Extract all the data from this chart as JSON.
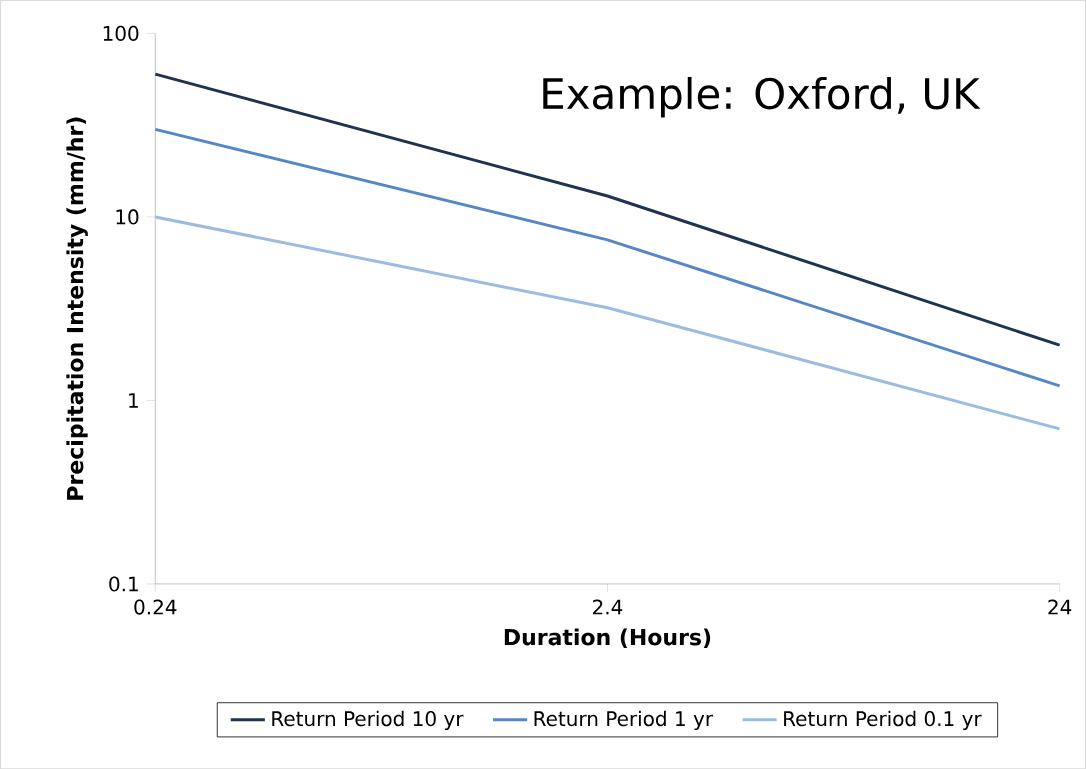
{
  "chart_data": {
    "type": "line",
    "xlabel": "Duration (Hours)",
    "ylabel": "Precipitation Intensity (mm/hr)",
    "log": "xy",
    "x": [
      0.24,
      2.4,
      24
    ],
    "xlim": [
      0.24,
      24
    ],
    "xticks": [
      0.24,
      2.4,
      24
    ],
    "ylim": [
      0.1,
      100
    ],
    "yticks": [
      0.1,
      1,
      10,
      100
    ],
    "grid": false,
    "legend": "bottom",
    "marker": "none",
    "line_style": "solid",
    "annotations": [
      "Example: Oxford, UK"
    ],
    "series": [
      {
        "name": "Return Period 10 yr",
        "color": "#1f3250",
        "values": [
          60,
          13,
          2
        ]
      },
      {
        "name": "Return Period 1 yr",
        "color": "#5587c8",
        "values": [
          30,
          7.5,
          1.2
        ]
      },
      {
        "name": "Return Period 0.1 yr",
        "color": "#9bbbe0",
        "values": [
          10,
          3.2,
          0.7
        ]
      }
    ]
  }
}
